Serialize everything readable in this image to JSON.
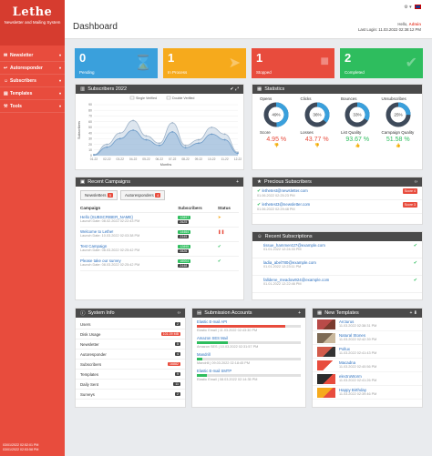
{
  "sidebar": {
    "brand": "Lethe",
    "tagline": "Newsletter and Mailing System",
    "items": [
      {
        "label": "Newsletter",
        "icon": "envelope-icon"
      },
      {
        "label": "Autoresponder",
        "icon": "reply-icon"
      },
      {
        "label": "Subscribers",
        "icon": "users-icon"
      },
      {
        "label": "Templates",
        "icon": "template-icon"
      },
      {
        "label": "Tools",
        "icon": "wrench-icon"
      }
    ],
    "footer": [
      "03/01/2022 02:52:01 PM",
      "03/01/2022 02:53:58 PM"
    ]
  },
  "header": {
    "title": "Dashboard",
    "greeting_prefix": "Hello,",
    "user": "Admin",
    "last_login": "Last Login: 11.03.2022 02:38:12 PM"
  },
  "stats": [
    {
      "value": "0",
      "label": "Pending",
      "color": "#3aa0dc",
      "icon": "hourglass-icon"
    },
    {
      "value": "1",
      "label": "In Process",
      "color": "#f6aa1c",
      "icon": "paper-plane-icon"
    },
    {
      "value": "1",
      "label": "Stopped",
      "color": "#e84c3d",
      "icon": "stop-icon"
    },
    {
      "value": "2",
      "label": "Completed",
      "color": "#2ebd5e",
      "icon": "check-icon"
    }
  ],
  "subscribers_panel": {
    "title": "Subscribers 2022",
    "legend": [
      "Single Verified",
      "Double Verified"
    ],
    "xlabel": "Months",
    "ylabel": "Subscribers"
  },
  "chart_data": {
    "type": "area",
    "title": "Subscribers 2022",
    "xlabel": "Months",
    "ylabel": "Subscribers",
    "categories": [
      "01-22",
      "02-22",
      "03-22",
      "04-22",
      "05-22",
      "06-22",
      "07-22",
      "08-22",
      "09-22",
      "10-22",
      "11-22",
      "12-22"
    ],
    "yticks": [
      0,
      10,
      20,
      30,
      40,
      50,
      60,
      70,
      80,
      90
    ],
    "ylim": [
      0,
      90
    ],
    "series": [
      {
        "name": "Single Verified",
        "values": [
          2,
          20,
          40,
          62,
          35,
          22,
          58,
          18,
          28,
          50,
          38,
          6
        ]
      },
      {
        "name": "Double Verified",
        "values": [
          1,
          15,
          30,
          45,
          28,
          18,
          42,
          14,
          22,
          38,
          28,
          4
        ]
      }
    ]
  },
  "statistics": {
    "title": "Statistics",
    "metrics": [
      {
        "label": "Opens",
        "pct": "49%",
        "value": 49
      },
      {
        "label": "Clicks",
        "pct": "36%",
        "value": 36
      },
      {
        "label": "Bounces",
        "pct": "33%",
        "value": 33
      },
      {
        "label": "Unsubscribes",
        "pct": "25%",
        "value": 25
      }
    ],
    "scores": [
      {
        "label": "Score",
        "value": "4.95 %",
        "color": "#e84c3d"
      },
      {
        "label": "Losses",
        "value": "43.77 %",
        "color": "#e84c3d"
      },
      {
        "label": "List Quality",
        "value": "93.67 %",
        "color": "#2ebd5e"
      },
      {
        "label": "Campaign Quality",
        "value": "51.58 %",
        "color": "#2ebd5e"
      }
    ]
  },
  "campaigns": {
    "title": "Recent Campaigns",
    "tabs": [
      {
        "label": "Newsletters",
        "count": "5"
      },
      {
        "label": "Autoresponders",
        "count": "4"
      }
    ],
    "columns": [
      "Campaign",
      "Subscribers",
      "Status"
    ],
    "rows": [
      {
        "name": "Hello {SUBSCRIBER_NAME}",
        "date": "Launch Date: 08.02.2022 02:22:43 PM",
        "subs": "12897",
        "count": "2625",
        "status": "paper-plane-icon",
        "status_color": "#f6aa1c"
      },
      {
        "name": "Welcome to Lethe!",
        "date": "Launch Date: 10.03.2022 02:03:38 PM",
        "subs": "14464",
        "count": "2345",
        "status": "pause-icon",
        "status_color": "#e84c3d"
      },
      {
        "name": "Test Campaign",
        "date": "Launch Date: 08.03.2022 02:25:42 PM",
        "subs": "12895",
        "count": "2826",
        "status": "check-icon",
        "status_color": "#2ebd5e"
      },
      {
        "name": "Please take our survey",
        "date": "Launch Date: 08.03.2022 02:25:42 PM",
        "subs": "16004",
        "count": "2448",
        "status": "check-icon",
        "status_color": "#2ebd5e"
      }
    ]
  },
  "precious": {
    "title": "Precious Subscribers",
    "rows": [
      {
        "email": "lethetest@newsletter.com",
        "date": "01.06.2022 02:25:23 PM",
        "score": "Score 4"
      },
      {
        "email": "lethetest3@newsletter.com",
        "date": "01.06.2022 02:29:48 PM",
        "score": "Score 3"
      }
    ]
  },
  "recent_subs": {
    "title": "Recent Subscriptions",
    "rows": [
      {
        "email": "tissue_hammer427@example.com",
        "date": "01.01.2022 12:24:33 PM"
      },
      {
        "email": "ladia_abel780@example.com",
        "date": "01.01.2022 12:23:11 PM"
      },
      {
        "email": "falldene_meadow924@example.com",
        "date": "01.01.2022 12:22:46 PM"
      }
    ]
  },
  "system": {
    "title": "System Info",
    "rows": [
      {
        "label": "Users",
        "value": "2"
      },
      {
        "label": "Disk Usage",
        "value": "101.09 MB",
        "red": true
      },
      {
        "label": "Newsletter",
        "value": "5"
      },
      {
        "label": "Autoresponder",
        "value": "4"
      },
      {
        "label": "Subscribers",
        "value": "16882",
        "red": true
      },
      {
        "label": "Templates",
        "value": "9"
      },
      {
        "label": "Daily Sent",
        "value": "11"
      },
      {
        "label": "Surveys",
        "value": "2"
      }
    ]
  },
  "accounts": {
    "title": "Submission Accounts",
    "rows": [
      {
        "name": "Elastic E-mail API",
        "date": "Elastic Email | 11.03.2022 02:43:30 PM",
        "fill": 85,
        "color": "red"
      },
      {
        "name": "Amazon SES Mail",
        "date": "Amazon SES | 10.03.2022 02:31:57 PM",
        "fill": 30,
        "color": "green"
      },
      {
        "name": "Mandrill",
        "date": "Mandrill | 09.03.2022 02:18:45 PM",
        "fill": 5,
        "color": "green"
      },
      {
        "name": "Elastic E-mail SMTP",
        "date": "Elastic Email | 08.03.2022 02:14:35 PM",
        "fill": 10,
        "color": "green"
      }
    ]
  },
  "templates": {
    "title": "New Templates",
    "rows": [
      {
        "name": "Arcturus",
        "date": "11.03.2022 02:38:31 PM",
        "colors": [
          "#b94a48",
          "#7a3b2e"
        ]
      },
      {
        "name": "Natural Stones",
        "date": "11.03.2022 02:42:39 PM",
        "colors": [
          "#7d6a55",
          "#c9b89d"
        ]
      },
      {
        "name": "Pollux",
        "date": "11.03.2022 02:41:43 PM",
        "colors": [
          "#d35b4a",
          "#333333"
        ]
      },
      {
        "name": "Macadna",
        "date": "11.03.2022 02:40:56 PM",
        "colors": [
          "#e84c3d",
          "#ffffff"
        ]
      },
      {
        "name": "electroWorm",
        "date": "11.03.2022 02:41:26 PM",
        "colors": [
          "#2b2b2b",
          "#e84c3d"
        ]
      },
      {
        "name": "Happy Birthday",
        "date": "11.03.2022 02:39:46 PM",
        "colors": [
          "#f6aa1c",
          "#e84c3d"
        ]
      }
    ]
  }
}
